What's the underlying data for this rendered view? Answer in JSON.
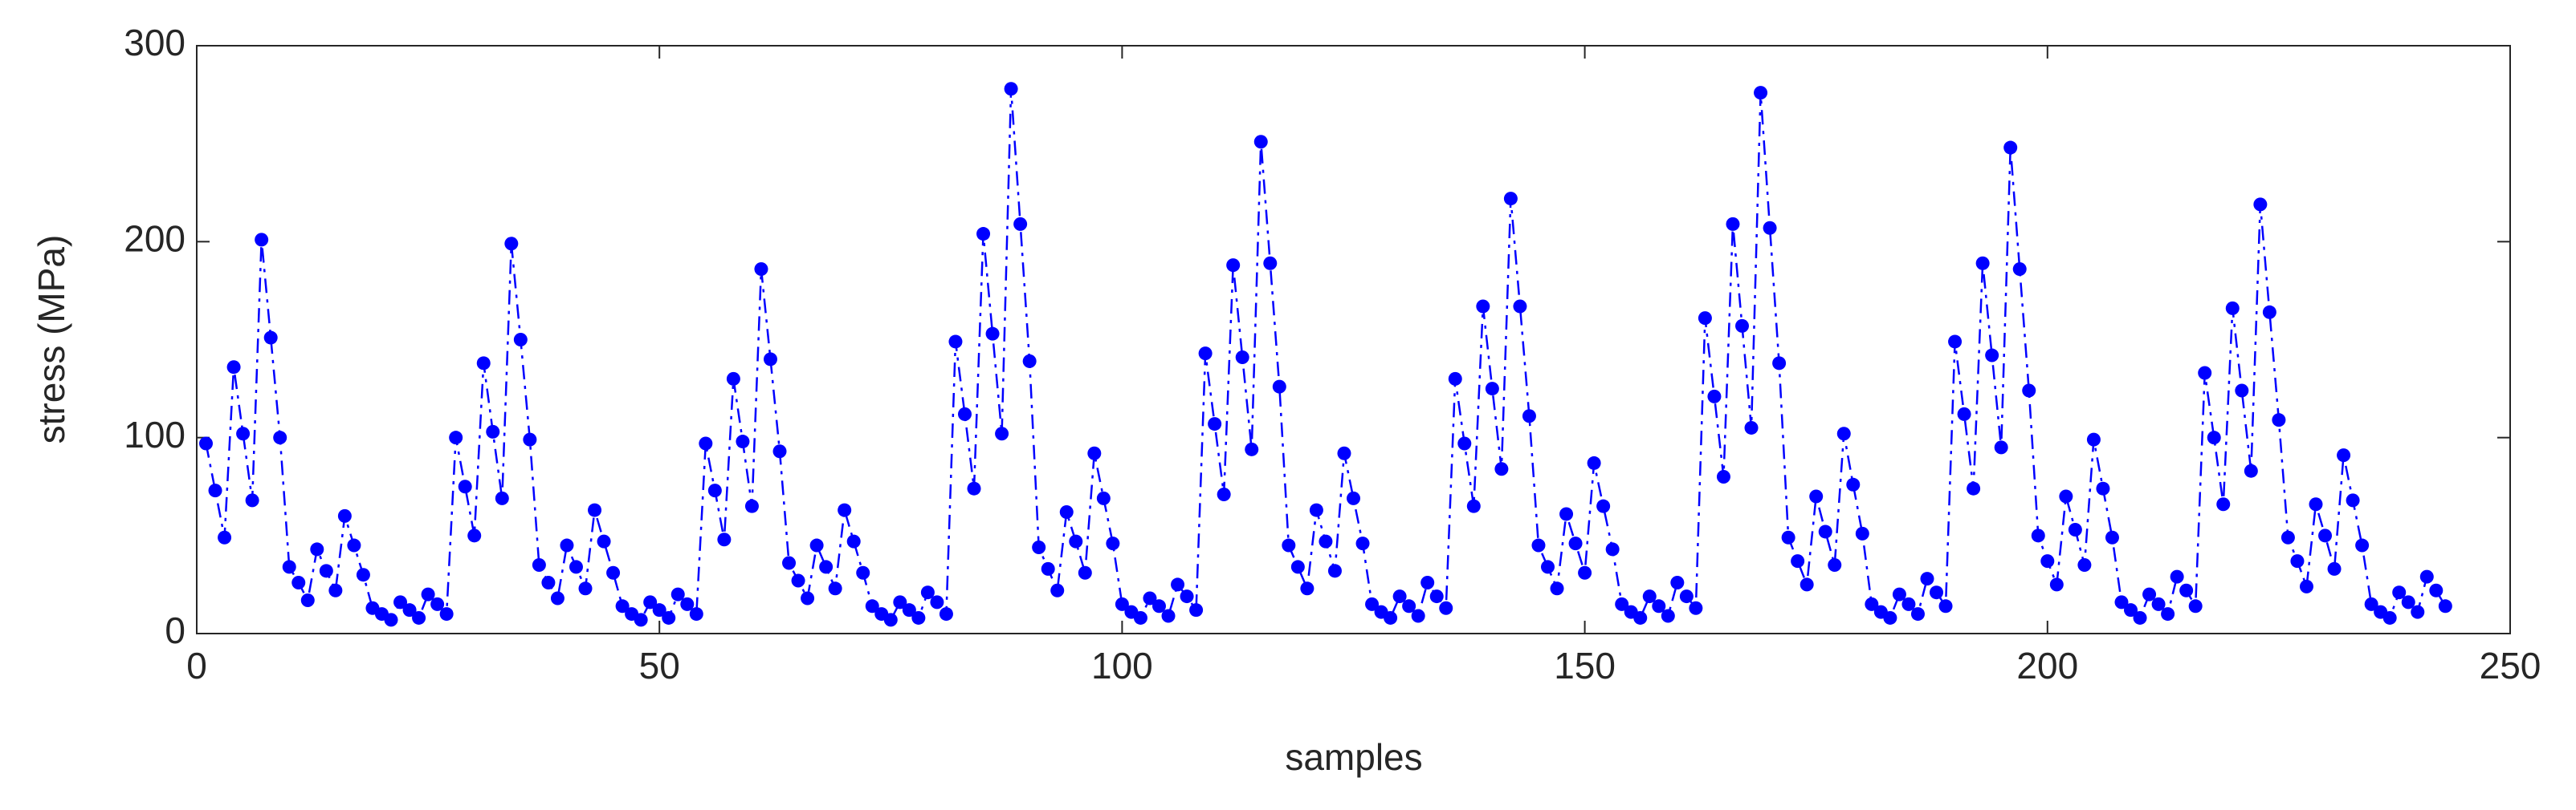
{
  "chart_data": {
    "type": "line",
    "xlabel": "samples",
    "ylabel": "stress (MPa)",
    "color": "#0000ff",
    "line_style": "dash-dot",
    "marker": "circle",
    "grid": false,
    "xlim": [
      0,
      250
    ],
    "xticks": [
      0,
      50,
      100,
      150,
      200,
      250
    ],
    "ylim": [
      0,
      300
    ],
    "yticks": [
      0,
      100,
      200,
      300
    ],
    "x": [
      1,
      2,
      3,
      4,
      5,
      6,
      7,
      8,
      9,
      10,
      11,
      12,
      13,
      14,
      15,
      16,
      17,
      18,
      19,
      20,
      21,
      22,
      23,
      24,
      25,
      26,
      27,
      28,
      29,
      30,
      31,
      32,
      33,
      34,
      35,
      36,
      37,
      38,
      39,
      40,
      41,
      42,
      43,
      44,
      45,
      46,
      47,
      48,
      49,
      50,
      51,
      52,
      53,
      54,
      55,
      56,
      57,
      58,
      59,
      60,
      61,
      62,
      63,
      64,
      65,
      66,
      67,
      68,
      69,
      70,
      71,
      72,
      73,
      74,
      75,
      76,
      77,
      78,
      79,
      80,
      81,
      82,
      83,
      84,
      85,
      86,
      87,
      88,
      89,
      90,
      91,
      92,
      93,
      94,
      95,
      96,
      97,
      98,
      99,
      100,
      101,
      102,
      103,
      104,
      105,
      106,
      107,
      108,
      109,
      110,
      111,
      112,
      113,
      114,
      115,
      116,
      117,
      118,
      119,
      120,
      121,
      122,
      123,
      124,
      125,
      126,
      127,
      128,
      129,
      130,
      131,
      132,
      133,
      134,
      135,
      136,
      137,
      138,
      139,
      140,
      141,
      142,
      143,
      144,
      145,
      146,
      147,
      148,
      149,
      150,
      151,
      152,
      153,
      154,
      155,
      156,
      157,
      158,
      159,
      160,
      161,
      162,
      163,
      164,
      165,
      166,
      167,
      168,
      169,
      170,
      171,
      172,
      173,
      174,
      175,
      176,
      177,
      178,
      179,
      180,
      181,
      182,
      183,
      184,
      185,
      186,
      187,
      188,
      189,
      190,
      191,
      192,
      193,
      194,
      195,
      196,
      197,
      198,
      199,
      200,
      201,
      202,
      203,
      204,
      205,
      206,
      207,
      208,
      209,
      210,
      211,
      212,
      213,
      214,
      215,
      216,
      217,
      218,
      219,
      220,
      221,
      222,
      223,
      224,
      225,
      226,
      227,
      228,
      229,
      230,
      231,
      232,
      233,
      234,
      235,
      236,
      237,
      238,
      239,
      240,
      241,
      242,
      243
    ],
    "values": [
      97,
      73,
      49,
      136,
      102,
      68,
      201,
      151,
      100,
      34,
      26,
      17,
      43,
      32,
      22,
      60,
      45,
      30,
      13,
      10,
      7,
      16,
      12,
      8,
      20,
      15,
      10,
      100,
      75,
      50,
      138,
      103,
      69,
      199,
      150,
      99,
      35,
      26,
      18,
      45,
      34,
      23,
      63,
      47,
      31,
      14,
      10,
      7,
      16,
      12,
      8,
      20,
      15,
      10,
      97,
      73,
      48,
      130,
      98,
      65,
      186,
      140,
      93,
      36,
      27,
      18,
      45,
      34,
      23,
      63,
      47,
      31,
      14,
      10,
      7,
      16,
      12,
      8,
      21,
      16,
      10,
      149,
      112,
      74,
      204,
      153,
      102,
      278,
      209,
      139,
      44,
      33,
      22,
      62,
      47,
      31,
      92,
      69,
      46,
      15,
      11,
      8,
      18,
      14,
      9,
      25,
      19,
      12,
      143,
      107,
      71,
      188,
      141,
      94,
      251,
      189,
      126,
      45,
      34,
      23,
      63,
      47,
      32,
      92,
      69,
      46,
      15,
      11,
      8,
      19,
      14,
      9,
      26,
      19,
      13,
      130,
      97,
      65,
      167,
      125,
      84,
      222,
      167,
      111,
      45,
      34,
      23,
      61,
      46,
      31,
      87,
      65,
      43,
      15,
      11,
      8,
      19,
      14,
      9,
      26,
      19,
      13,
      161,
      121,
      80,
      209,
      157,
      105,
      276,
      207,
      138,
      49,
      37,
      25,
      70,
      52,
      35,
      102,
      76,
      51,
      15,
      11,
      8,
      20,
      15,
      10,
      28,
      21,
      14,
      149,
      112,
      74,
      189,
      142,
      95,
      248,
      186,
      124,
      50,
      37,
      25,
      70,
      53,
      35,
      99,
      74,
      49,
      16,
      12,
      8,
      20,
      15,
      10,
      29,
      22,
      14,
      133,
      100,
      66,
      166,
      124,
      83,
      219,
      164,
      109,
      49,
      37,
      24,
      66,
      50,
      33,
      91,
      68,
      45,
      15,
      11,
      8,
      21,
      16,
      11,
      29,
      22,
      14
    ]
  }
}
